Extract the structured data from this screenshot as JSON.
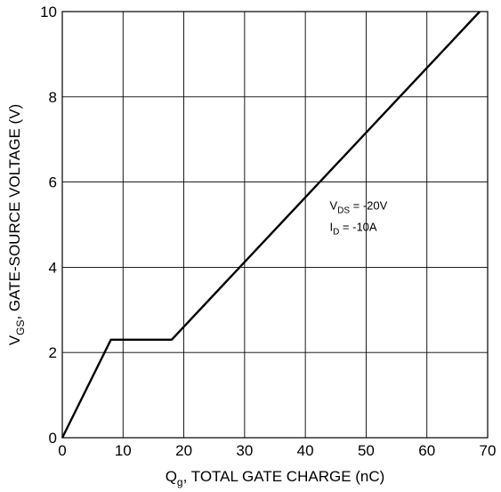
{
  "chart_data": {
    "type": "line",
    "xlabel": {
      "base": "Q",
      "sub": "g",
      "rest": ", TOTAL GATE CHARGE (nC)"
    },
    "ylabel": {
      "base": "V",
      "sub": "GS",
      "rest": ", GATE-SOURCE VOLTAGE (V)"
    },
    "xlim": [
      0,
      70
    ],
    "ylim": [
      0,
      10
    ],
    "xticks": [
      0,
      10,
      20,
      30,
      40,
      50,
      60,
      70
    ],
    "yticks": [
      0,
      2,
      4,
      6,
      8,
      10
    ],
    "grid": true,
    "series": [
      {
        "x": [
          0,
          8,
          18,
          68.7
        ],
        "y": [
          0,
          2.3,
          2.3,
          10
        ]
      }
    ],
    "annotations": [
      {
        "base": "V",
        "sub": "DS",
        "rest": " = -20V",
        "x": 44,
        "y": 5.35
      },
      {
        "base": "I",
        "sub": "D",
        "rest": " = -10A",
        "x": 44,
        "y": 4.85
      }
    ]
  }
}
